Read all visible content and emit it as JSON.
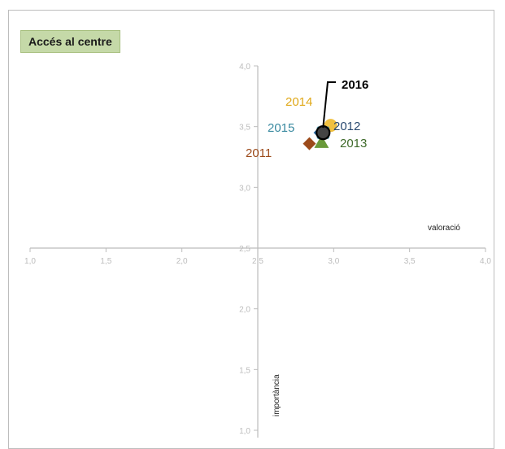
{
  "chart_data": {
    "type": "scatter",
    "title": "Accés al centre",
    "xlabel": "valoració",
    "ylabel": "importància",
    "xlim": [
      1.0,
      4.0
    ],
    "ylim": [
      1.0,
      4.0
    ],
    "x_ticks": [
      "1,0",
      "1,5",
      "2,0",
      "2,5",
      "3,0",
      "3,5",
      "4,0"
    ],
    "y_ticks": [
      "1,0",
      "1,5",
      "2,0",
      "2,5",
      "3,0",
      "3,5",
      "4,0"
    ],
    "cross_at": [
      2.5,
      2.5
    ],
    "grid": false,
    "series": [
      {
        "name": "2011",
        "x": 2.84,
        "y": 3.36,
        "marker": "diamond",
        "color": "#9c4a1a"
      },
      {
        "name": "2012",
        "x": 2.91,
        "y": 3.45,
        "marker": "diamond",
        "color": "#2e6fa8"
      },
      {
        "name": "2013",
        "x": 2.92,
        "y": 3.37,
        "marker": "triangle",
        "color": "#6a9a3a"
      },
      {
        "name": "2014",
        "x": 2.98,
        "y": 3.51,
        "marker": "circle",
        "color": "#f0c040"
      },
      {
        "name": "2015",
        "x": 2.93,
        "y": 3.45,
        "marker": "x",
        "color": "#4a9ab0"
      },
      {
        "name": "2016",
        "x": 2.93,
        "y": 3.45,
        "marker": "circle",
        "color": "#1a1a1a"
      }
    ],
    "labels": [
      {
        "text": "2011",
        "color": "#9c4a1a",
        "bold": false
      },
      {
        "text": "2012",
        "color": "#2a4a70",
        "bold": false
      },
      {
        "text": "2013",
        "color": "#3e6a2a",
        "bold": false
      },
      {
        "text": "2014",
        "color": "#e0a818",
        "bold": false
      },
      {
        "text": "2015",
        "color": "#3a8aa0",
        "bold": false
      },
      {
        "text": "2016",
        "color": "#000000",
        "bold": true
      }
    ]
  }
}
